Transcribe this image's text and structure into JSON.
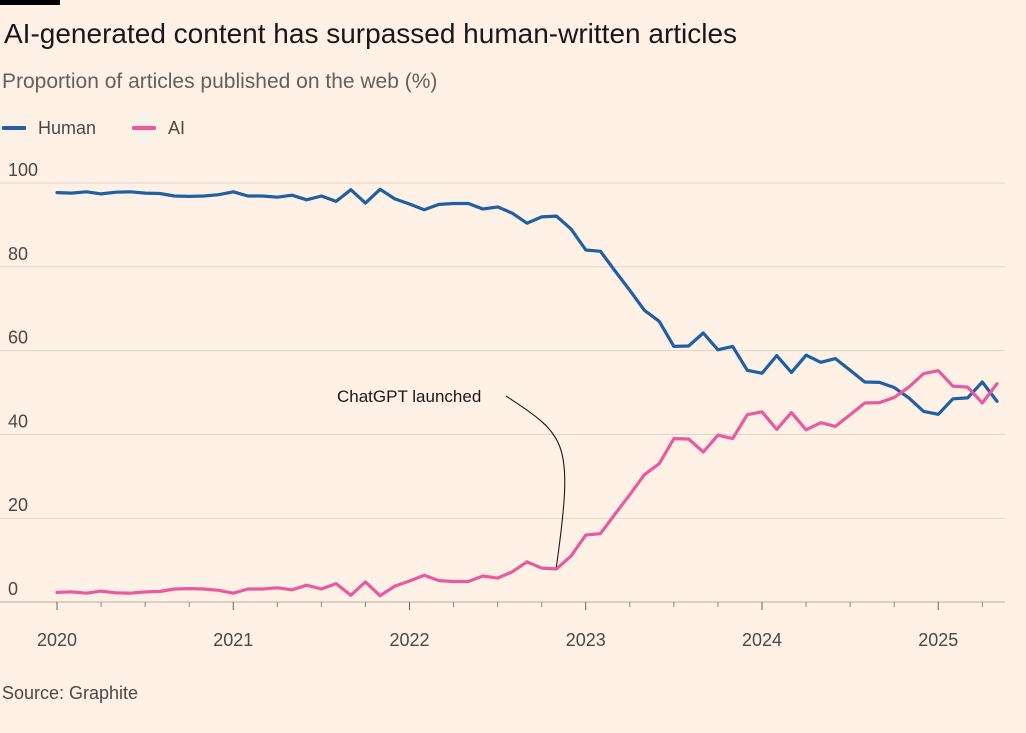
{
  "title": "AI-generated content has surpassed human-written articles",
  "subtitle": "Proportion of articles published on the web (%)",
  "source": "Source: Graphite",
  "colors": {
    "human": "#1e5fa5",
    "ai": "#ea5aa0",
    "grid": "#e0d4c9",
    "background": "#fff1e5"
  },
  "chart_data": {
    "type": "line",
    "title": "AI-generated content has surpassed human-written articles",
    "ylabel": "Proportion of articles published on the web (%)",
    "xlabel": "",
    "ylim": [
      0,
      100
    ],
    "yticks": [
      0,
      20,
      40,
      60,
      80,
      100
    ],
    "xticks": [
      "2020",
      "2021",
      "2022",
      "2023",
      "2024",
      "2025"
    ],
    "x_range": [
      "2020-01",
      "2025-05"
    ],
    "x": [
      "2020-01",
      "2020-02",
      "2020-03",
      "2020-04",
      "2020-05",
      "2020-06",
      "2020-07",
      "2020-08",
      "2020-09",
      "2020-10",
      "2020-11",
      "2020-12",
      "2021-01",
      "2021-02",
      "2021-03",
      "2021-04",
      "2021-05",
      "2021-06",
      "2021-07",
      "2021-08",
      "2021-09",
      "2021-10",
      "2021-11",
      "2021-12",
      "2022-01",
      "2022-02",
      "2022-03",
      "2022-04",
      "2022-05",
      "2022-06",
      "2022-07",
      "2022-08",
      "2022-09",
      "2022-10",
      "2022-11",
      "2022-12",
      "2023-01",
      "2023-02",
      "2023-03",
      "2023-04",
      "2023-05",
      "2023-06",
      "2023-07",
      "2023-08",
      "2023-09",
      "2023-10",
      "2023-11",
      "2023-12",
      "2024-01",
      "2024-02",
      "2024-03",
      "2024-04",
      "2024-05",
      "2024-06",
      "2024-07",
      "2024-08",
      "2024-09",
      "2024-10",
      "2024-11",
      "2024-12",
      "2025-01",
      "2025-02",
      "2025-03",
      "2025-04",
      "2025-05"
    ],
    "series": [
      {
        "name": "Human",
        "color": "#1e5fa5",
        "values": [
          97.7,
          97.6,
          97.9,
          97.4,
          97.8,
          97.9,
          97.6,
          97.5,
          96.9,
          96.8,
          96.9,
          97.2,
          97.9,
          96.9,
          96.9,
          96.6,
          97.1,
          96.0,
          96.9,
          95.6,
          98.4,
          95.2,
          98.5,
          96.2,
          95.0,
          93.6,
          94.9,
          95.1,
          95.1,
          93.8,
          94.3,
          92.8,
          90.4,
          91.9,
          92.1,
          89.0,
          84.0,
          83.7,
          79.0,
          74.4,
          69.6,
          67.0,
          61.0,
          61.1,
          64.2,
          60.2,
          61.0,
          55.3,
          54.6,
          58.8,
          54.8,
          58.9,
          57.2,
          58.1,
          55.3,
          52.5,
          52.4,
          51.2,
          48.7,
          45.5,
          44.8,
          48.5,
          48.7,
          52.5,
          47.9
        ]
      },
      {
        "name": "AI",
        "color": "#ea5aa0",
        "values": [
          2.3,
          2.4,
          2.1,
          2.6,
          2.2,
          2.1,
          2.4,
          2.5,
          3.1,
          3.2,
          3.1,
          2.8,
          2.1,
          3.1,
          3.1,
          3.4,
          2.9,
          4.0,
          3.1,
          4.4,
          1.6,
          4.8,
          1.5,
          3.8,
          5.0,
          6.4,
          5.1,
          4.9,
          4.9,
          6.2,
          5.7,
          7.2,
          9.6,
          8.1,
          7.9,
          11.0,
          16.0,
          16.3,
          21.0,
          25.6,
          30.4,
          33.0,
          39.0,
          38.9,
          35.8,
          39.8,
          39.0,
          44.7,
          45.4,
          41.2,
          45.2,
          41.1,
          42.8,
          41.9,
          44.7,
          47.5,
          47.6,
          48.8,
          51.3,
          54.5,
          55.2,
          51.5,
          51.3,
          47.5,
          52.1
        ]
      }
    ],
    "annotations": [
      {
        "text": "ChatGPT launched",
        "x": "2022-11",
        "y": 7.9
      }
    ],
    "legend": {
      "position": "top-left",
      "entries": [
        "Human",
        "AI"
      ]
    },
    "grid": "horizontal"
  }
}
